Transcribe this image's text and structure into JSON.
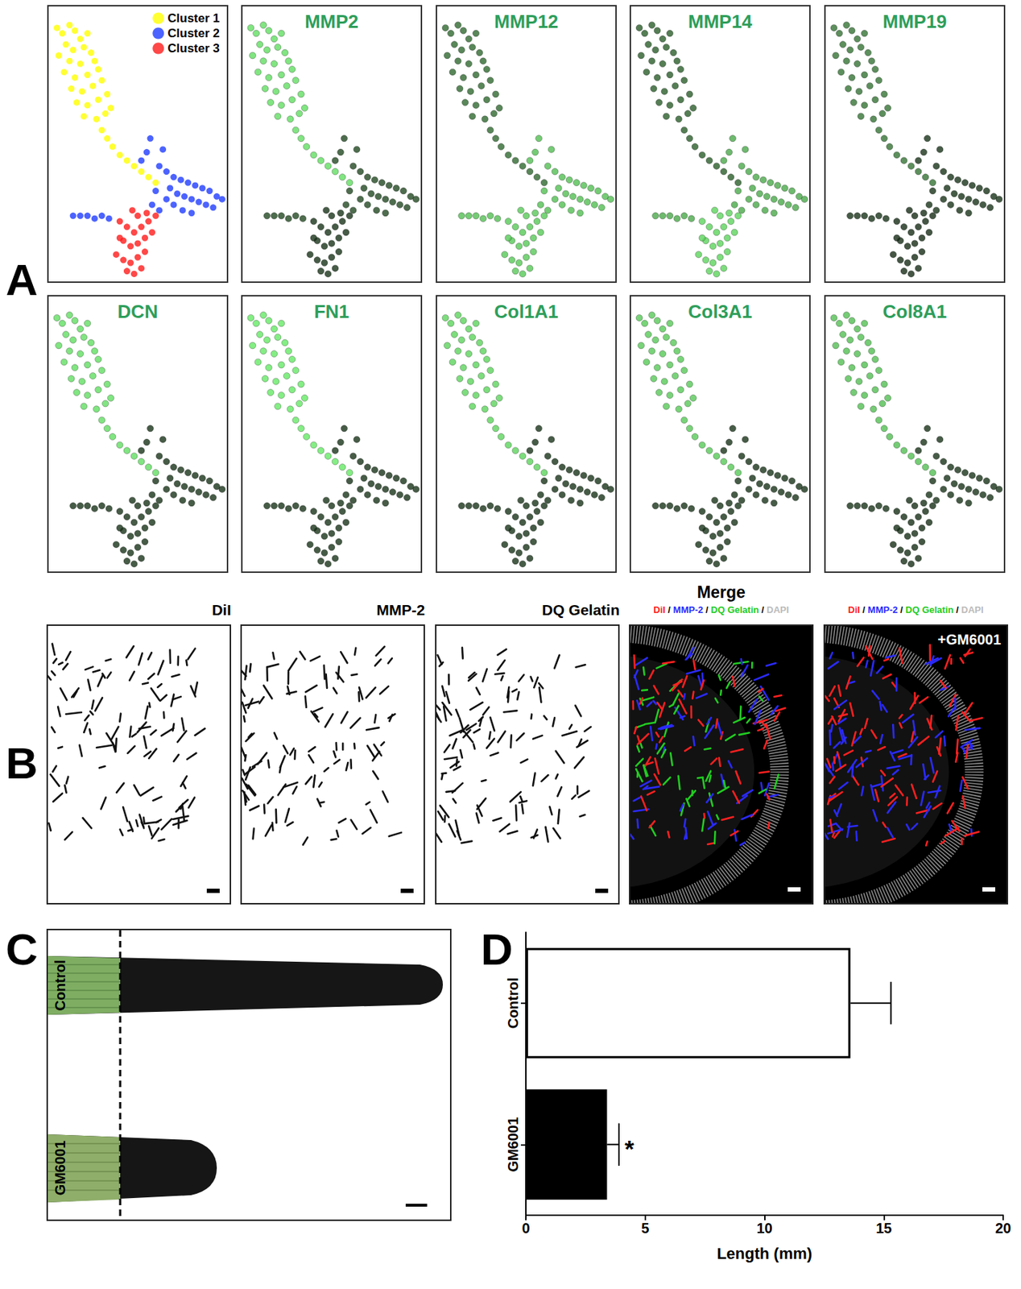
{
  "panel_labels": [
    "A",
    "B",
    "C",
    "D"
  ],
  "chart_data": [
    {
      "type": "scatter",
      "xlim": [
        0,
        100
      ],
      "ylim": [
        0,
        100
      ],
      "tick_labels": false,
      "legend": "upper right",
      "series": [
        {
          "name": "Cluster 1",
          "color": "#ffff00",
          "x": [
            5,
            8,
            12,
            15,
            18,
            22,
            10,
            14,
            20,
            24,
            6,
            12,
            18,
            26,
            9,
            15,
            22,
            28,
            13,
            19,
            25,
            30,
            16,
            22,
            28,
            33,
            20,
            27,
            32,
            35,
            30,
            33,
            36,
            40,
            44,
            48,
            52,
            56,
            60
          ],
          "y": [
            92,
            90,
            93,
            91,
            88,
            90,
            86,
            84,
            85,
            83,
            82,
            80,
            79,
            80,
            76,
            74,
            75,
            77,
            70,
            69,
            71,
            73,
            65,
            64,
            66,
            68,
            60,
            59,
            61,
            63,
            55,
            52,
            49,
            46,
            44,
            42,
            40,
            38,
            36
          ]
        },
        {
          "name": "Cluster 2",
          "color": "#1f3cff",
          "x": [
            62,
            66,
            70,
            74,
            78,
            82,
            86,
            90,
            94,
            97,
            68,
            72,
            76,
            80,
            84,
            88,
            92,
            70,
            75,
            80,
            66,
            62,
            60,
            58,
            55,
            52,
            64,
            57,
            14,
            18,
            22,
            26,
            30,
            34
          ],
          "y": [
            42,
            40,
            38,
            37,
            36,
            35,
            34,
            33,
            31,
            30,
            34,
            32,
            31,
            30,
            29,
            28,
            27,
            28,
            26,
            25,
            30,
            26,
            33,
            28,
            47,
            44,
            48,
            52,
            24,
            24,
            24,
            23,
            24,
            23
          ]
        },
        {
          "name": "Cluster 3",
          "color": "#ff1a1a",
          "x": [
            40,
            44,
            48,
            52,
            56,
            42,
            46,
            50,
            54,
            58,
            38,
            42,
            46,
            50,
            54,
            44,
            48,
            52,
            40,
            55,
            60,
            50,
            47
          ],
          "y": [
            22,
            20,
            18,
            20,
            22,
            15,
            13,
            14,
            16,
            18,
            10,
            8,
            7,
            9,
            11,
            4,
            3,
            5,
            16,
            25,
            24,
            24,
            26
          ]
        }
      ]
    },
    {
      "type": "scatter",
      "title": "MMP2",
      "expression": [
        0.85,
        0.15,
        0.05
      ]
    },
    {
      "type": "scatter",
      "title": "MMP12",
      "expression": [
        0.3,
        0.7,
        0.75
      ]
    },
    {
      "type": "scatter",
      "title": "MMP14",
      "expression": [
        0.25,
        0.6,
        0.8
      ]
    },
    {
      "type": "scatter",
      "title": "MMP19",
      "expression": [
        0.35,
        0.05,
        0.02
      ]
    },
    {
      "type": "scatter",
      "title": "DCN",
      "expression": [
        0.85,
        0.05,
        0.05
      ]
    },
    {
      "type": "scatter",
      "title": "FN1",
      "expression": [
        0.9,
        0.05,
        0.05
      ]
    },
    {
      "type": "scatter",
      "title": "Col1A1",
      "expression": [
        0.8,
        0.05,
        0.05
      ]
    },
    {
      "type": "scatter",
      "title": "Col3A1",
      "expression": [
        0.75,
        0.05,
        0.05
      ]
    },
    {
      "type": "scatter",
      "title": "Col8A1",
      "expression": [
        0.7,
        0.05,
        0.03
      ]
    },
    {
      "type": "bar",
      "orientation": "horizontal",
      "categories": [
        "Control",
        "GM6001"
      ],
      "values": [
        13.6,
        3.4
      ],
      "errors": [
        1.7,
        0.5
      ],
      "colors": [
        "#ffffff",
        "#000000"
      ],
      "xlim": [
        0,
        20
      ],
      "xticks": [
        0,
        5,
        10,
        15,
        20
      ],
      "xlabel": "Length (mm)",
      "grid": false,
      "annotations": [
        {
          "category": "GM6001",
          "text": "*"
        }
      ]
    }
  ],
  "panel_b": {
    "channels": [
      "DiI",
      "MMP-2",
      "DQ Gelatin"
    ],
    "merge_title": "Merge",
    "separator": " / ",
    "legend": [
      {
        "name": "DiI",
        "color": "#ff2020"
      },
      {
        "name": "MMP-2",
        "color": "#2a2aff"
      },
      {
        "name": "DQ Gelatin",
        "color": "#22cc22"
      },
      {
        "name": "DAPI",
        "color": "#bbbbbb"
      }
    ],
    "treatment": "+GM6001"
  },
  "panel_c": {
    "labels": [
      "Control",
      "GM6001"
    ]
  }
}
